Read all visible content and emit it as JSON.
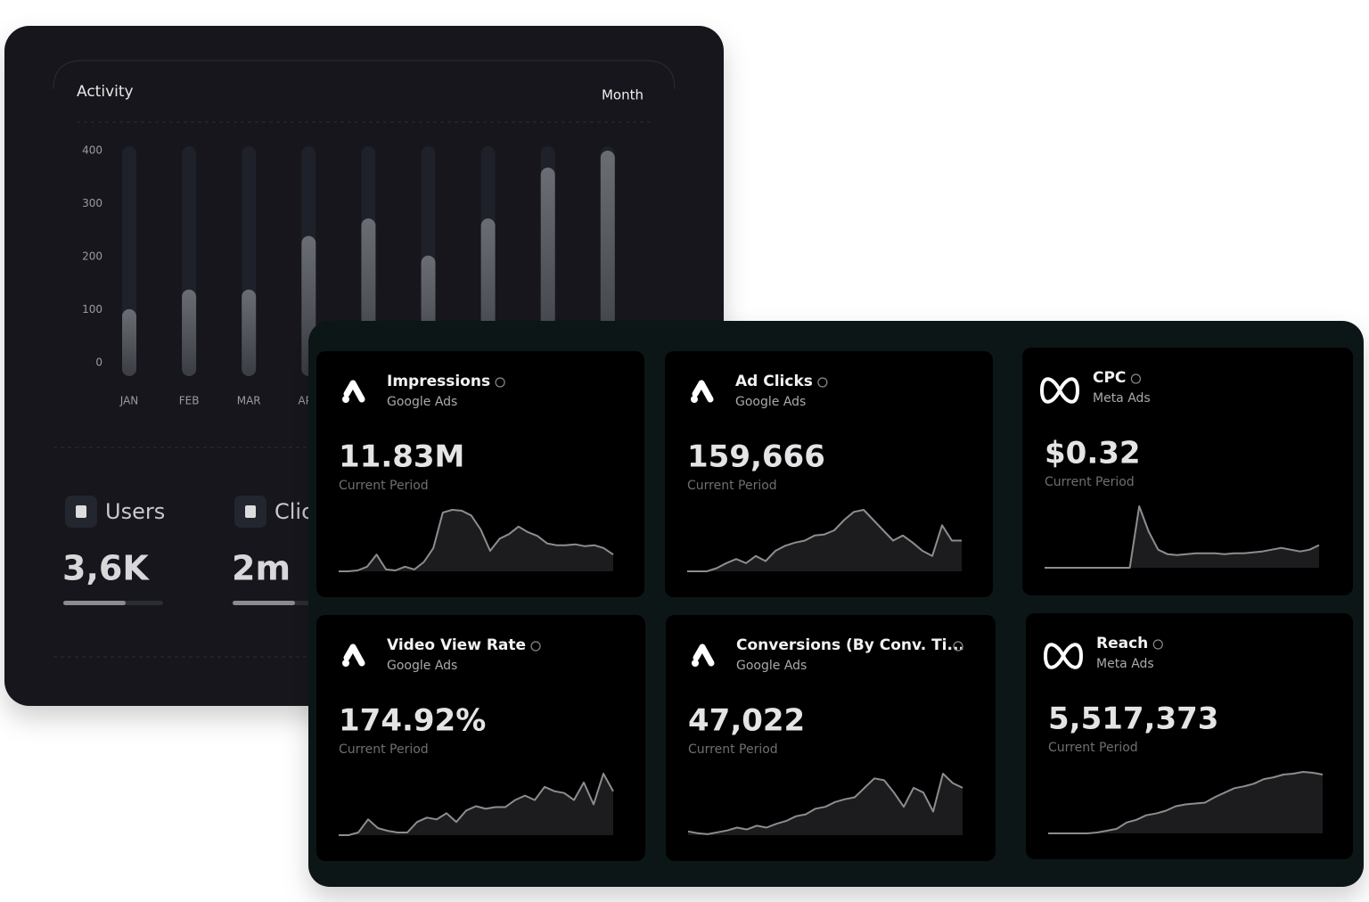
{
  "chart_data": {
    "type": "bar",
    "title": "Activity",
    "period": "Month",
    "categories": [
      "JAN",
      "FEB",
      "MAR",
      "APR",
      null,
      null,
      null,
      null,
      null
    ],
    "values": [
      101,
      138,
      138,
      239,
      272,
      202,
      272,
      368,
      400
    ],
    "ylim": [
      0,
      400
    ],
    "yticks": [
      0,
      100,
      200,
      300,
      400
    ],
    "grid": false
  },
  "stats": [
    {
      "label": "Users",
      "value": "3,6K"
    },
    {
      "label": "Clicks",
      "value": "2m"
    }
  ],
  "cards": [
    {
      "title": "Impressions",
      "source": "Google Ads",
      "value": "11.83M",
      "period_label": "Current Period",
      "trend": [
        0,
        0,
        1,
        5,
        18,
        2,
        1,
        5,
        2,
        10,
        25,
        63,
        66,
        65,
        60,
        45,
        22,
        35,
        40,
        48,
        42,
        38,
        30,
        28,
        28,
        29,
        27,
        28,
        25,
        18
      ]
    },
    {
      "title": "Ad Clicks",
      "source": "Google Ads",
      "value": "159,666",
      "period_label": "Current Period",
      "trend": [
        0,
        0,
        0,
        3,
        8,
        12,
        8,
        15,
        10,
        20,
        25,
        28,
        30,
        35,
        36,
        40,
        50,
        58,
        60,
        50,
        40,
        30,
        35,
        28,
        20,
        15,
        45,
        30,
        30
      ]
    },
    {
      "title": "CPC",
      "source": "Meta Ads",
      "value": "$0.32",
      "period_label": "Current Period",
      "trend": [
        0,
        0,
        0,
        0,
        0,
        0,
        0,
        0,
        0,
        0,
        68,
        40,
        20,
        15,
        14,
        15,
        16,
        16,
        16,
        15,
        16,
        16,
        17,
        18,
        20,
        22,
        20,
        18,
        20,
        25
      ]
    },
    {
      "title": "Video View Rate",
      "source": "Google Ads",
      "value": "174.92%",
      "period_label": "Current Period",
      "trend": [
        0,
        0,
        3,
        18,
        8,
        5,
        3,
        3,
        15,
        20,
        18,
        25,
        15,
        28,
        33,
        30,
        32,
        32,
        40,
        45,
        40,
        55,
        50,
        48,
        40,
        60,
        35,
        70,
        50
      ]
    },
    {
      "title": "Conversions (By Conv. Ti...",
      "source": "Google Ads",
      "value": "47,022",
      "period_label": "Current Period",
      "trend": [
        4,
        2,
        1,
        3,
        5,
        8,
        6,
        10,
        8,
        12,
        15,
        20,
        22,
        28,
        30,
        35,
        38,
        40,
        50,
        60,
        58,
        45,
        30,
        50,
        45,
        25,
        65,
        55,
        50
      ]
    },
    {
      "title": "Reach",
      "source": "Meta Ads",
      "value": "5,517,373",
      "period_label": "Current Period",
      "trend": [
        0,
        0,
        0,
        0,
        0,
        1,
        3,
        5,
        12,
        15,
        20,
        22,
        25,
        30,
        32,
        33,
        34,
        40,
        45,
        50,
        52,
        55,
        60,
        62,
        65,
        66,
        68,
        67,
        65
      ]
    }
  ]
}
